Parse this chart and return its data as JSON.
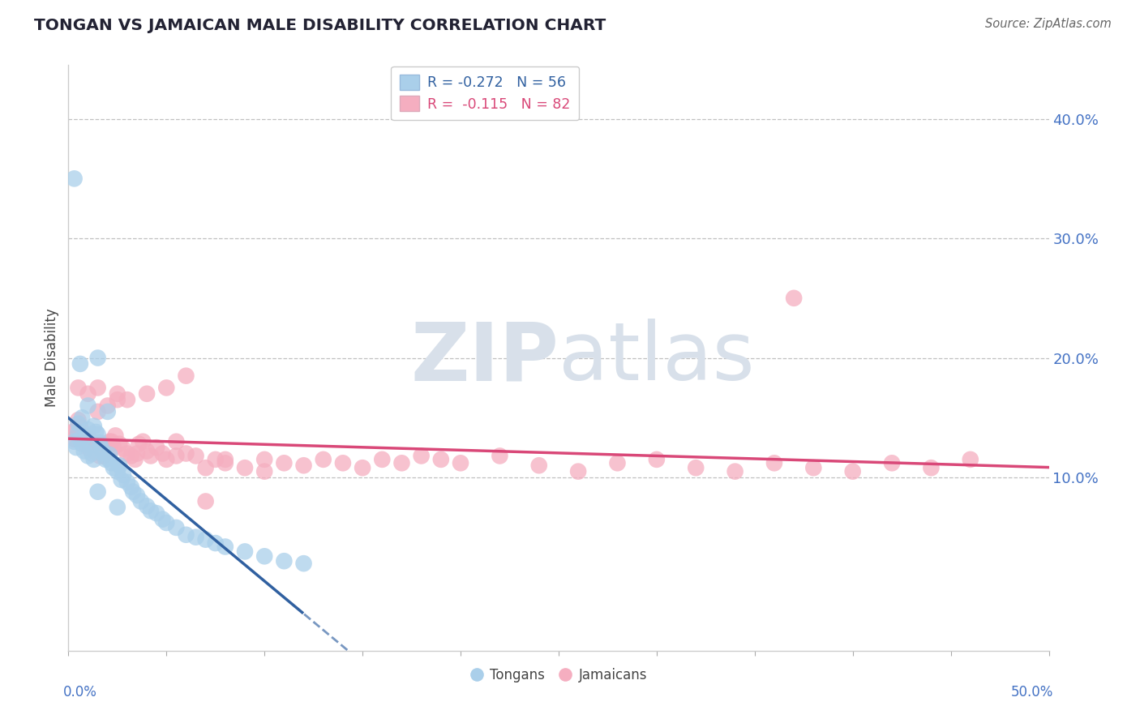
{
  "title": "TONGAN VS JAMAICAN MALE DISABILITY CORRELATION CHART",
  "source": "Source: ZipAtlas.com",
  "ylabel": "Male Disability",
  "yticks": [
    0.1,
    0.2,
    0.3,
    0.4
  ],
  "ytick_labels": [
    "10.0%",
    "20.0%",
    "30.0%",
    "40.0%"
  ],
  "xmin": 0.0,
  "xmax": 0.5,
  "ymin": -0.045,
  "ymax": 0.445,
  "legend_blue_r": "R = -0.272",
  "legend_blue_n": "N = 56",
  "legend_pink_r": "R =  -0.115",
  "legend_pink_n": "N = 82",
  "blue_fill": "#aacfea",
  "pink_fill": "#f5aec0",
  "blue_line": "#3060a0",
  "pink_line": "#d94878",
  "axis_label_color": "#4472c4",
  "watermark_color": "#d8e0ea",
  "tongans_x": [
    0.003,
    0.004,
    0.005,
    0.005,
    0.006,
    0.007,
    0.007,
    0.008,
    0.009,
    0.01,
    0.01,
    0.011,
    0.012,
    0.013,
    0.013,
    0.014,
    0.015,
    0.015,
    0.016,
    0.017,
    0.018,
    0.019,
    0.02,
    0.021,
    0.022,
    0.023,
    0.025,
    0.026,
    0.027,
    0.028,
    0.03,
    0.032,
    0.033,
    0.035,
    0.037,
    0.04,
    0.042,
    0.045,
    0.048,
    0.05,
    0.055,
    0.06,
    0.065,
    0.07,
    0.075,
    0.08,
    0.09,
    0.1,
    0.11,
    0.12,
    0.003,
    0.006,
    0.01,
    0.015,
    0.02,
    0.025
  ],
  "tongans_y": [
    0.13,
    0.125,
    0.138,
    0.145,
    0.132,
    0.128,
    0.15,
    0.122,
    0.135,
    0.14,
    0.118,
    0.127,
    0.12,
    0.115,
    0.143,
    0.138,
    0.136,
    0.088,
    0.129,
    0.124,
    0.12,
    0.115,
    0.116,
    0.119,
    0.112,
    0.108,
    0.105,
    0.11,
    0.098,
    0.102,
    0.096,
    0.092,
    0.088,
    0.085,
    0.08,
    0.076,
    0.072,
    0.07,
    0.065,
    0.062,
    0.058,
    0.052,
    0.05,
    0.048,
    0.045,
    0.042,
    0.038,
    0.034,
    0.03,
    0.028,
    0.35,
    0.195,
    0.16,
    0.2,
    0.155,
    0.075
  ],
  "jamaicans_x": [
    0.002,
    0.003,
    0.004,
    0.005,
    0.006,
    0.007,
    0.008,
    0.009,
    0.01,
    0.011,
    0.012,
    0.013,
    0.014,
    0.015,
    0.016,
    0.017,
    0.018,
    0.019,
    0.02,
    0.021,
    0.022,
    0.023,
    0.024,
    0.025,
    0.026,
    0.028,
    0.03,
    0.032,
    0.034,
    0.036,
    0.038,
    0.04,
    0.042,
    0.045,
    0.048,
    0.05,
    0.055,
    0.06,
    0.065,
    0.07,
    0.075,
    0.08,
    0.09,
    0.1,
    0.11,
    0.12,
    0.13,
    0.14,
    0.15,
    0.16,
    0.17,
    0.18,
    0.19,
    0.2,
    0.22,
    0.24,
    0.26,
    0.28,
    0.3,
    0.32,
    0.34,
    0.36,
    0.38,
    0.4,
    0.42,
    0.44,
    0.46,
    0.005,
    0.01,
    0.015,
    0.02,
    0.025,
    0.03,
    0.04,
    0.05,
    0.06,
    0.07,
    0.035,
    0.055,
    0.08,
    0.1,
    0.37
  ],
  "jamaicans_y": [
    0.138,
    0.132,
    0.14,
    0.148,
    0.142,
    0.135,
    0.13,
    0.128,
    0.125,
    0.132,
    0.128,
    0.122,
    0.125,
    0.155,
    0.118,
    0.122,
    0.118,
    0.128,
    0.125,
    0.13,
    0.13,
    0.125,
    0.135,
    0.165,
    0.128,
    0.124,
    0.12,
    0.118,
    0.115,
    0.128,
    0.13,
    0.122,
    0.118,
    0.125,
    0.12,
    0.115,
    0.118,
    0.12,
    0.118,
    0.108,
    0.115,
    0.112,
    0.108,
    0.115,
    0.112,
    0.11,
    0.115,
    0.112,
    0.108,
    0.115,
    0.112,
    0.118,
    0.115,
    0.112,
    0.118,
    0.11,
    0.105,
    0.112,
    0.115,
    0.108,
    0.105,
    0.112,
    0.108,
    0.105,
    0.112,
    0.108,
    0.115,
    0.175,
    0.17,
    0.175,
    0.16,
    0.17,
    0.165,
    0.17,
    0.175,
    0.185,
    0.08,
    0.12,
    0.13,
    0.115,
    0.105,
    0.25
  ]
}
